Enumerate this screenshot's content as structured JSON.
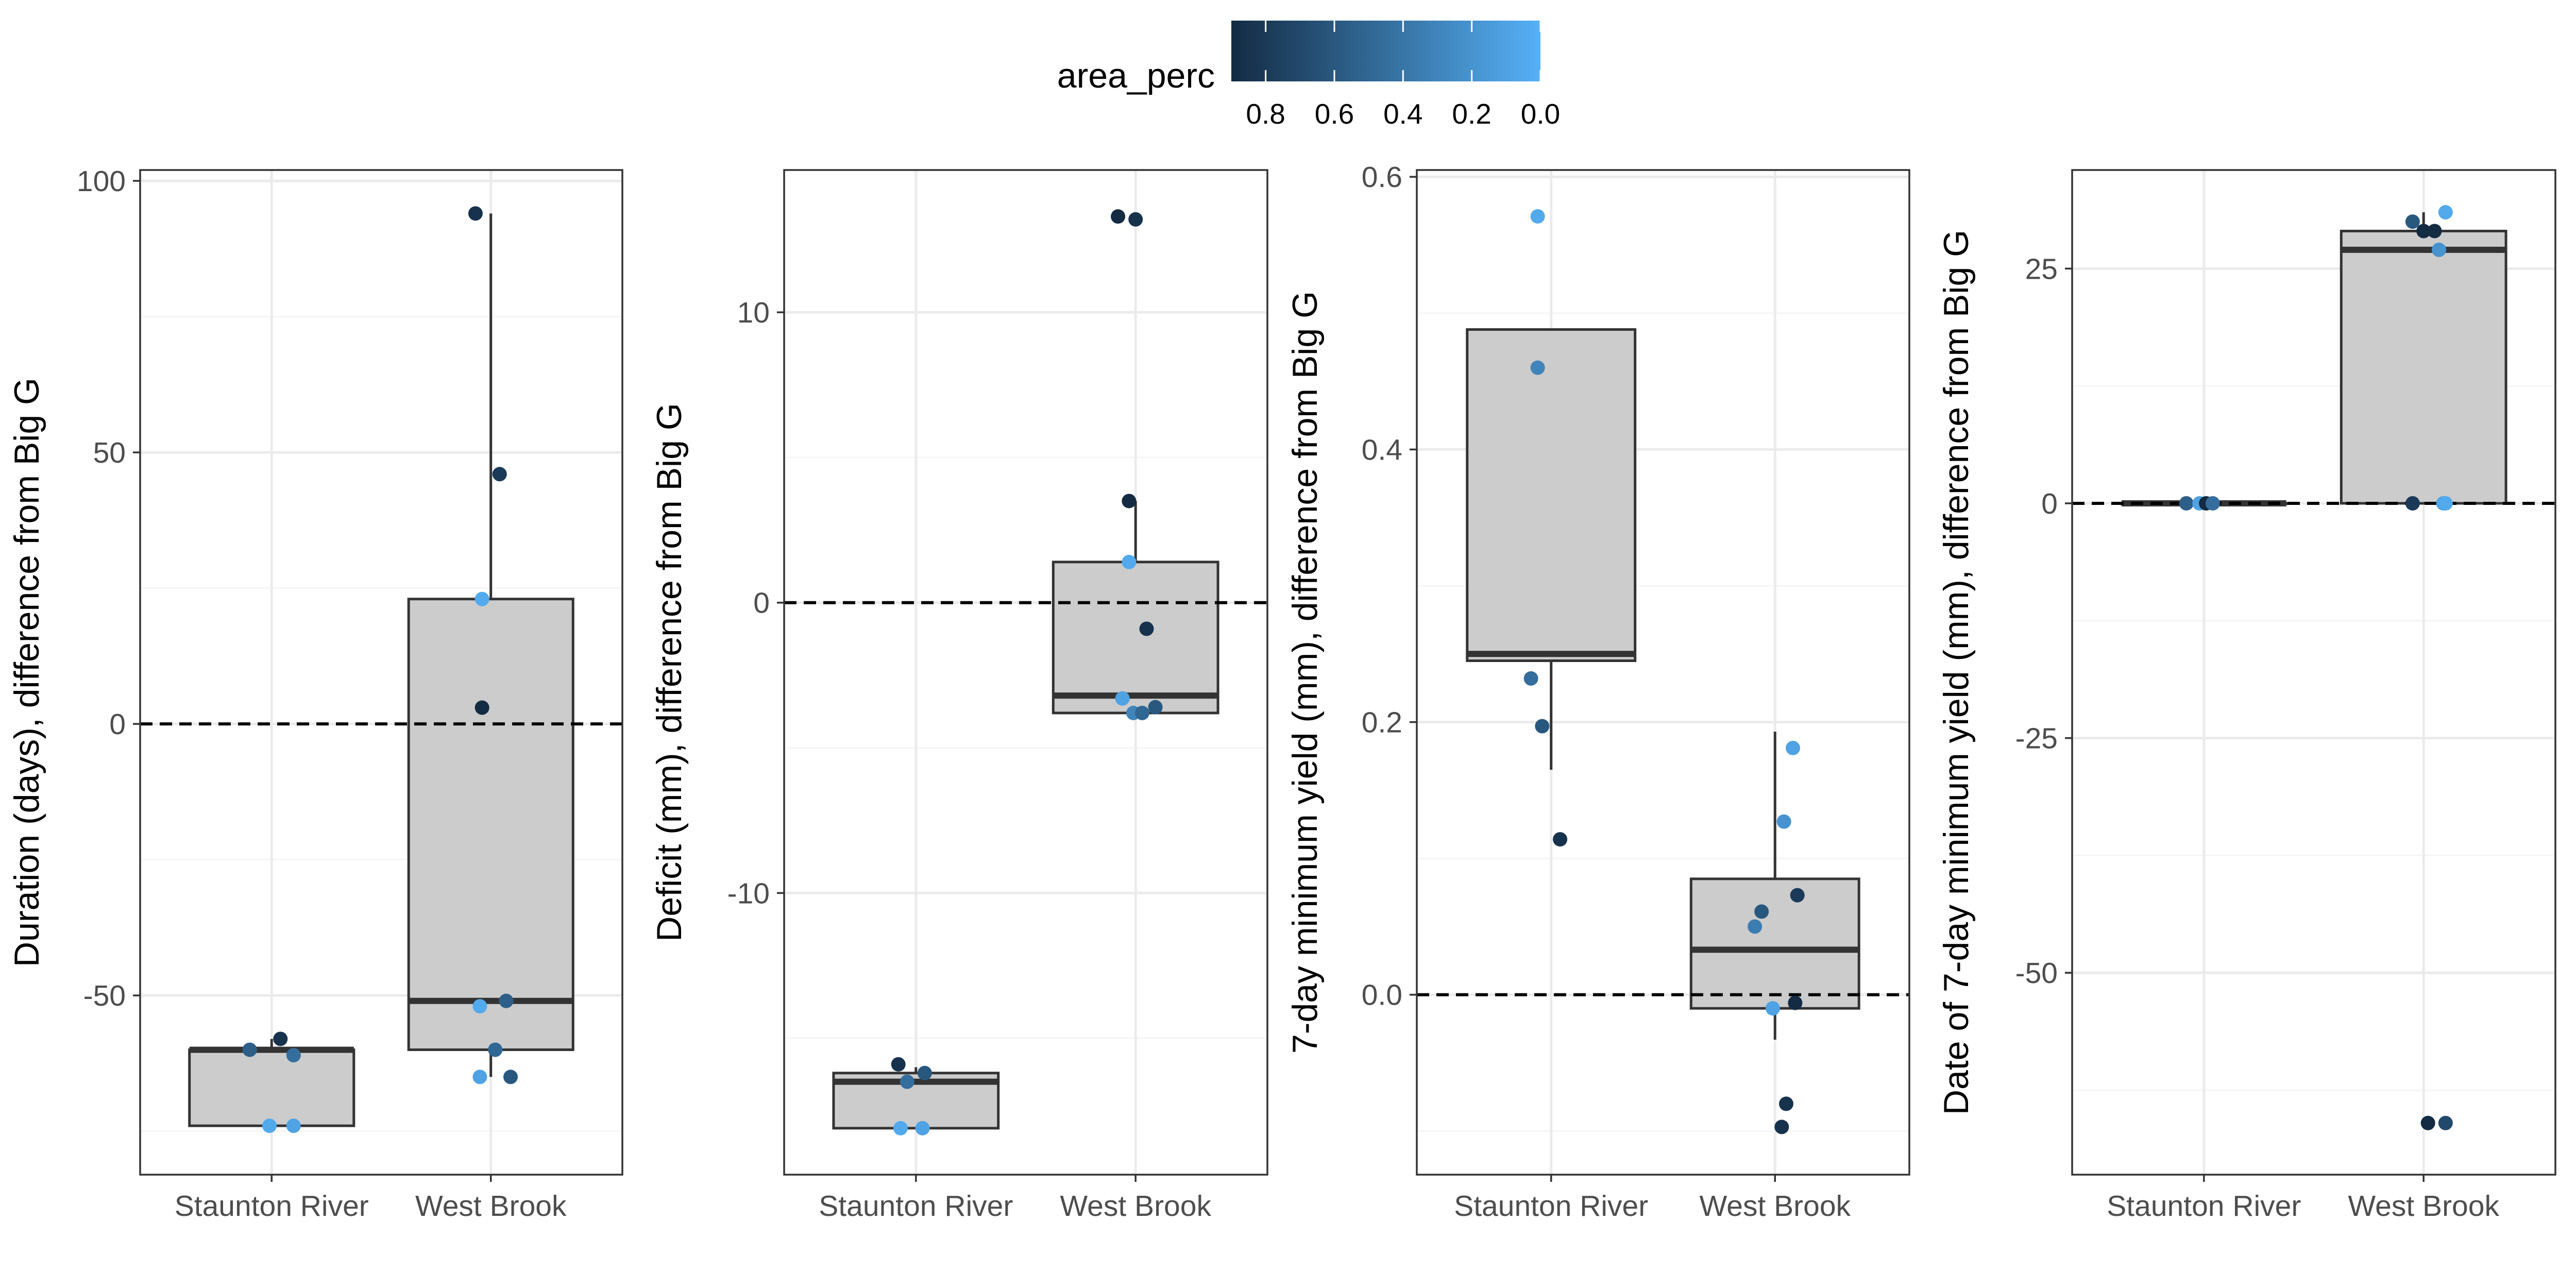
{
  "legend": {
    "title": "area_perc",
    "ticks": [
      0.8,
      0.6,
      0.4,
      0.2,
      0.0
    ],
    "tick_labels": [
      "0.8",
      "0.6",
      "0.4",
      "0.2",
      "0.0"
    ],
    "range": [
      0.0,
      0.9
    ],
    "color_high": "#132b43",
    "color_low": "#56b1f7",
    "placement": "top-center"
  },
  "colors": {
    "box_fill": "#cccccc",
    "box_stroke": "#333333",
    "grid_major": "#ebebeb",
    "grid_minor": "#f5f5f5",
    "panel_border": "#333333",
    "reference_line": "#000000"
  },
  "chart_data": [
    {
      "type": "box",
      "title": "",
      "xlabel": "",
      "ylabel": "Duration (days), difference from Big G",
      "categories": [
        "Staunton River",
        "West Brook"
      ],
      "ylim": [
        -83,
        102
      ],
      "yticks": [
        -50,
        0,
        50,
        100
      ],
      "ytick_labels": [
        "-50",
        "0",
        "50",
        "100"
      ],
      "reference_y": 0,
      "grid": true,
      "boxes": [
        {
          "category": "Staunton River",
          "min": -74,
          "q1": -74,
          "median": -60,
          "q3": -60,
          "max": -58
        },
        {
          "category": "West Brook",
          "min": -65,
          "q1": -60,
          "median": -51,
          "q3": 23,
          "max": 94
        }
      ],
      "points": [
        {
          "category": "Staunton River",
          "jitter": -0.1,
          "y": -60,
          "area_perc": 0.55
        },
        {
          "category": "Staunton River",
          "jitter": 0.04,
          "y": -58,
          "area_perc": 0.85
        },
        {
          "category": "Staunton River",
          "jitter": 0.1,
          "y": -61,
          "area_perc": 0.45
        },
        {
          "category": "Staunton River",
          "jitter": -0.01,
          "y": -74,
          "area_perc": 0.05
        },
        {
          "category": "Staunton River",
          "jitter": 0.1,
          "y": -74,
          "area_perc": 0.1
        },
        {
          "category": "West Brook",
          "jitter": -0.07,
          "y": 94,
          "area_perc": 0.85
        },
        {
          "category": "West Brook",
          "jitter": 0.04,
          "y": 46,
          "area_perc": 0.8
        },
        {
          "category": "West Brook",
          "jitter": -0.04,
          "y": 23,
          "area_perc": 0.05
        },
        {
          "category": "West Brook",
          "jitter": -0.04,
          "y": 3,
          "area_perc": 0.9
        },
        {
          "category": "West Brook",
          "jitter": -0.05,
          "y": -52,
          "area_perc": 0.05
        },
        {
          "category": "West Brook",
          "jitter": 0.07,
          "y": -51,
          "area_perc": 0.55
        },
        {
          "category": "West Brook",
          "jitter": 0.02,
          "y": -60,
          "area_perc": 0.5
        },
        {
          "category": "West Brook",
          "jitter": -0.05,
          "y": -65,
          "area_perc": 0.1
        },
        {
          "category": "West Brook",
          "jitter": 0.09,
          "y": -65,
          "area_perc": 0.6
        }
      ]
    },
    {
      "type": "box",
      "title": "",
      "xlabel": "",
      "ylabel": "Deficit (mm), difference from Big G",
      "categories": [
        "Staunton River",
        "West Brook"
      ],
      "ylim": [
        -19.7,
        14.9
      ],
      "yticks": [
        -10,
        0,
        10
      ],
      "ytick_labels": [
        "-10",
        "0",
        "10"
      ],
      "reference_y": 0,
      "grid": true,
      "boxes": [
        {
          "category": "Staunton River",
          "min": -18.1,
          "q1": -18.1,
          "median": -16.5,
          "q3": -16.2,
          "max": -16.0
        },
        {
          "category": "West Brook",
          "min": -3.8,
          "q1": -3.8,
          "median": -3.2,
          "q3": 1.4,
          "max": 3.5
        }
      ],
      "points": [
        {
          "category": "Staunton River",
          "jitter": -0.08,
          "y": -15.9,
          "area_perc": 0.85
        },
        {
          "category": "Staunton River",
          "jitter": 0.04,
          "y": -16.2,
          "area_perc": 0.6
        },
        {
          "category": "Staunton River",
          "jitter": -0.04,
          "y": -16.5,
          "area_perc": 0.45
        },
        {
          "category": "Staunton River",
          "jitter": -0.07,
          "y": -18.1,
          "area_perc": 0.05
        },
        {
          "category": "Staunton River",
          "jitter": 0.03,
          "y": -18.1,
          "area_perc": 0.1
        },
        {
          "category": "West Brook",
          "jitter": -0.08,
          "y": 13.3,
          "area_perc": 0.9
        },
        {
          "category": "West Brook",
          "jitter": 0.0,
          "y": 13.2,
          "area_perc": 0.85
        },
        {
          "category": "West Brook",
          "jitter": -0.03,
          "y": 3.5,
          "area_perc": 0.9
        },
        {
          "category": "West Brook",
          "jitter": -0.03,
          "y": 1.4,
          "area_perc": 0.05
        },
        {
          "category": "West Brook",
          "jitter": 0.05,
          "y": -0.9,
          "area_perc": 0.85
        },
        {
          "category": "West Brook",
          "jitter": -0.06,
          "y": -3.3,
          "area_perc": 0.1
        },
        {
          "category": "West Brook",
          "jitter": -0.01,
          "y": -3.8,
          "area_perc": 0.3
        },
        {
          "category": "West Brook",
          "jitter": 0.03,
          "y": -3.8,
          "area_perc": 0.5
        },
        {
          "category": "West Brook",
          "jitter": 0.09,
          "y": -3.6,
          "area_perc": 0.6
        }
      ]
    },
    {
      "type": "box",
      "title": "",
      "xlabel": "",
      "ylabel": "7-day minimum yield (mm), difference from Big G",
      "categories": [
        "Staunton River",
        "West Brook"
      ],
      "ylim": [
        -0.132,
        0.605
      ],
      "yticks": [
        0.0,
        0.2,
        0.4,
        0.6
      ],
      "ytick_labels": [
        "0.0",
        "0.2",
        "0.4",
        "0.6"
      ],
      "reference_y": 0,
      "grid": true,
      "boxes": [
        {
          "category": "Staunton River",
          "min": 0.165,
          "q1": 0.245,
          "median": 0.25,
          "q3": 0.488,
          "max": 0.488
        },
        {
          "category": "West Brook",
          "min": -0.033,
          "q1": -0.01,
          "median": 0.033,
          "q3": 0.085,
          "max": 0.193
        }
      ],
      "points": [
        {
          "category": "Staunton River",
          "jitter": -0.06,
          "y": 0.571,
          "area_perc": 0.05
        },
        {
          "category": "Staunton River",
          "jitter": -0.06,
          "y": 0.46,
          "area_perc": 0.3
        },
        {
          "category": "Staunton River",
          "jitter": -0.09,
          "y": 0.232,
          "area_perc": 0.45
        },
        {
          "category": "Staunton River",
          "jitter": -0.04,
          "y": 0.197,
          "area_perc": 0.6
        },
        {
          "category": "Staunton River",
          "jitter": 0.04,
          "y": 0.114,
          "area_perc": 0.85
        },
        {
          "category": "West Brook",
          "jitter": 0.08,
          "y": 0.181,
          "area_perc": 0.1
        },
        {
          "category": "West Brook",
          "jitter": 0.04,
          "y": 0.127,
          "area_perc": 0.2
        },
        {
          "category": "West Brook",
          "jitter": 0.1,
          "y": 0.073,
          "area_perc": 0.8
        },
        {
          "category": "West Brook",
          "jitter": -0.06,
          "y": 0.061,
          "area_perc": 0.6
        },
        {
          "category": "West Brook",
          "jitter": -0.09,
          "y": 0.05,
          "area_perc": 0.35
        },
        {
          "category": "West Brook",
          "jitter": -0.01,
          "y": -0.01,
          "area_perc": 0.1
        },
        {
          "category": "West Brook",
          "jitter": 0.09,
          "y": -0.006,
          "area_perc": 0.9
        },
        {
          "category": "West Brook",
          "jitter": 0.05,
          "y": -0.08,
          "area_perc": 0.85
        },
        {
          "category": "West Brook",
          "jitter": 0.03,
          "y": -0.097,
          "area_perc": 0.85
        }
      ]
    },
    {
      "type": "box",
      "title": "",
      "xlabel": "",
      "ylabel": "Date of 7-day minimum yield (mm), difference from Big G",
      "categories": [
        "Staunton River",
        "West Brook"
      ],
      "ylim": [
        -71.5,
        35.5
      ],
      "yticks": [
        -50,
        -25,
        0,
        25
      ],
      "ytick_labels": [
        "-50",
        "-25",
        "0",
        "25"
      ],
      "reference_y": 0,
      "grid": true,
      "boxes": [
        {
          "category": "Staunton River",
          "min": 0,
          "q1": 0,
          "median": 0,
          "q3": 0,
          "max": 0
        },
        {
          "category": "West Brook",
          "min": 0,
          "q1": 0,
          "median": 27,
          "q3": 29,
          "max": 31
        }
      ],
      "points": [
        {
          "category": "Staunton River",
          "jitter": -0.08,
          "y": 0,
          "area_perc": 0.55
        },
        {
          "category": "Staunton River",
          "jitter": -0.02,
          "y": 0,
          "area_perc": 0.1
        },
        {
          "category": "Staunton River",
          "jitter": 0.01,
          "y": 0,
          "area_perc": 0.9
        },
        {
          "category": "Staunton River",
          "jitter": 0.04,
          "y": 0,
          "area_perc": 0.45
        },
        {
          "category": "West Brook",
          "jitter": 0.1,
          "y": 31,
          "area_perc": 0.05
        },
        {
          "category": "West Brook",
          "jitter": -0.05,
          "y": 30,
          "area_perc": 0.6
        },
        {
          "category": "West Brook",
          "jitter": 0.0,
          "y": 29,
          "area_perc": 0.9
        },
        {
          "category": "West Brook",
          "jitter": 0.05,
          "y": 29,
          "area_perc": 0.9
        },
        {
          "category": "West Brook",
          "jitter": 0.07,
          "y": 27,
          "area_perc": 0.2
        },
        {
          "category": "West Brook",
          "jitter": -0.05,
          "y": 0,
          "area_perc": 0.8
        },
        {
          "category": "West Brook",
          "jitter": 0.09,
          "y": 0,
          "area_perc": 0.1
        },
        {
          "category": "West Brook",
          "jitter": 0.1,
          "y": 0,
          "area_perc": 0.05
        },
        {
          "category": "West Brook",
          "jitter": 0.02,
          "y": -66,
          "area_perc": 0.9
        },
        {
          "category": "West Brook",
          "jitter": 0.1,
          "y": -66,
          "area_perc": 0.7
        }
      ]
    }
  ]
}
